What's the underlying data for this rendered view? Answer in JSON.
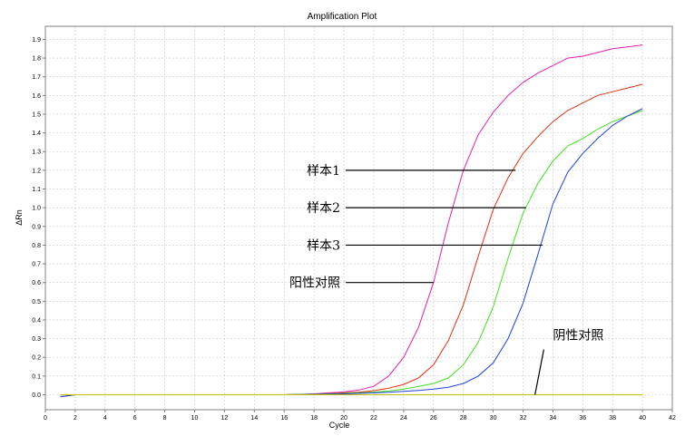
{
  "chart_data": {
    "type": "line",
    "title": "Amplification Plot",
    "xlabel": "Cycle",
    "ylabel": "ΔRn",
    "xlim": [
      0,
      42
    ],
    "ylim": [
      -0.08,
      1.97
    ],
    "xticks": [
      0,
      2,
      4,
      6,
      8,
      10,
      12,
      14,
      16,
      18,
      20,
      22,
      24,
      26,
      28,
      30,
      32,
      34,
      36,
      38,
      40,
      42
    ],
    "yticks": [
      0.0,
      0.1,
      0.2,
      0.3,
      0.4,
      0.5,
      0.6,
      0.7,
      0.8,
      0.9,
      1.0,
      1.1,
      1.2,
      1.3,
      1.4,
      1.5,
      1.6,
      1.7,
      1.8,
      1.9
    ],
    "grid": true,
    "x": [
      1,
      2,
      3,
      4,
      5,
      6,
      7,
      8,
      9,
      10,
      11,
      12,
      13,
      14,
      15,
      16,
      17,
      18,
      19,
      20,
      21,
      22,
      23,
      24,
      25,
      26,
      27,
      28,
      29,
      30,
      31,
      32,
      33,
      34,
      35,
      36,
      37,
      38,
      39,
      40
    ],
    "series": [
      {
        "color": "#e020b0",
        "values": [
          -0.01,
          0,
          0,
          0,
          0,
          0,
          0,
          0,
          0,
          0,
          0,
          0,
          0,
          0,
          0,
          0,
          0.002,
          0.005,
          0.01,
          0.015,
          0.025,
          0.045,
          0.1,
          0.2,
          0.36,
          0.6,
          0.92,
          1.2,
          1.39,
          1.51,
          1.6,
          1.67,
          1.72,
          1.76,
          1.8,
          1.81,
          1.83,
          1.85,
          1.86,
          1.87
        ]
      },
      {
        "color": "#e03010",
        "values": [
          -0.01,
          0,
          0,
          0,
          0,
          0,
          0,
          0,
          0,
          0,
          0,
          0,
          0,
          0,
          0,
          0,
          0.002,
          0.004,
          0.006,
          0.01,
          0.014,
          0.022,
          0.035,
          0.055,
          0.09,
          0.16,
          0.29,
          0.48,
          0.74,
          0.99,
          1.16,
          1.29,
          1.38,
          1.46,
          1.52,
          1.56,
          1.6,
          1.62,
          1.64,
          1.66
        ]
      },
      {
        "color": "#40e020",
        "values": [
          -0.01,
          0,
          0,
          0,
          0,
          0,
          0,
          0,
          0,
          0,
          0,
          0,
          0,
          0,
          0,
          0,
          0.002,
          0.003,
          0.005,
          0.007,
          0.01,
          0.014,
          0.02,
          0.03,
          0.045,
          0.06,
          0.09,
          0.16,
          0.28,
          0.47,
          0.73,
          0.97,
          1.13,
          1.25,
          1.33,
          1.37,
          1.42,
          1.46,
          1.49,
          1.52
        ]
      },
      {
        "color": "#2040e0",
        "values": [
          -0.01,
          0,
          0,
          0,
          0,
          0,
          0,
          0,
          0,
          0,
          0,
          0,
          0,
          0,
          0,
          0,
          0.001,
          0.002,
          0.003,
          0.005,
          0.007,
          0.01,
          0.013,
          0.018,
          0.023,
          0.03,
          0.04,
          0.06,
          0.1,
          0.17,
          0.3,
          0.49,
          0.75,
          1.02,
          1.19,
          1.29,
          1.37,
          1.44,
          1.49,
          1.53
        ]
      },
      {
        "color": "#7020c0",
        "values": [
          0,
          0,
          0,
          0,
          0,
          0,
          0,
          0,
          0,
          0,
          0,
          0,
          0,
          0,
          0,
          0,
          0,
          0,
          0,
          0,
          0,
          0,
          0,
          0,
          0,
          0,
          0,
          0,
          0,
          0,
          0,
          0,
          0,
          0,
          0,
          0,
          0,
          0,
          0,
          0
        ]
      },
      {
        "color": "#c8c000",
        "values": [
          0,
          0,
          0,
          0,
          0,
          0,
          0,
          0,
          0,
          0,
          0,
          0,
          0,
          0,
          0,
          0,
          0,
          0,
          0,
          0,
          0,
          0,
          0,
          0,
          0,
          0,
          0,
          0,
          0,
          0,
          0,
          0,
          0,
          0,
          0,
          0,
          0,
          0,
          0,
          0
        ]
      }
    ],
    "annotations": [
      {
        "text": "样本1",
        "point": [
          31.5,
          1.2
        ],
        "label_at": [
          20.0,
          1.2
        ]
      },
      {
        "text": "样本2",
        "point": [
          32.2,
          1.0
        ],
        "label_at": [
          20.0,
          1.0
        ]
      },
      {
        "text": "样本3",
        "point": [
          33.3,
          0.8
        ],
        "label_at": [
          20.0,
          0.8
        ]
      },
      {
        "text": "阳性对照",
        "point": [
          26.0,
          0.6
        ],
        "label_at": [
          20.0,
          0.6
        ]
      },
      {
        "text": "阴性对照",
        "point": [
          32.8,
          0.0
        ],
        "label_at": [
          34.0,
          0.29
        ]
      }
    ]
  }
}
